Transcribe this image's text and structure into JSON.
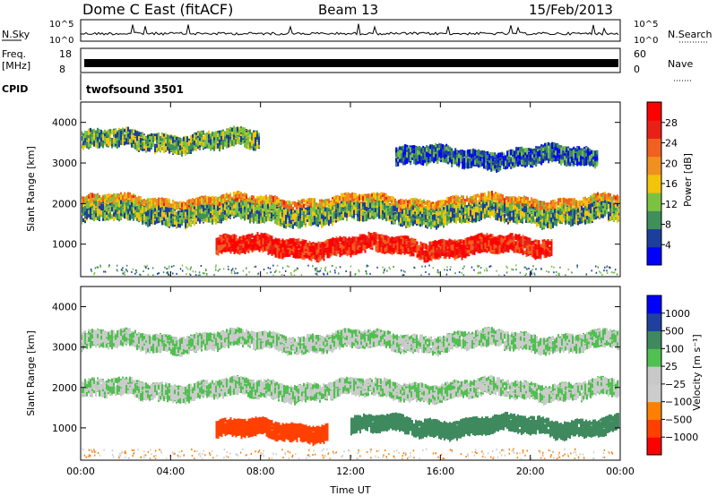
{
  "header": {
    "title": "Dome C East (fitACF)",
    "beam": "Beam 13",
    "date": "15/Feb/2013"
  },
  "nsky": {
    "label": "N.Sky",
    "y_top": "10^5",
    "y_bottom": "10^0",
    "right_label": "N.Search",
    "right_top": "10^5",
    "right_bottom": "10^0"
  },
  "freq": {
    "label_line1": "Freq.",
    "label_line2": "[MHz]",
    "y_top": "18",
    "y_bottom": "8",
    "right_label": "Nave",
    "right_top": "60",
    "right_bottom": "0"
  },
  "cpid": {
    "label": "CPID",
    "value": "twofsound 3501"
  },
  "colors": {
    "power": [
      "#0000ff",
      "#1c3f9c",
      "#3e8f5a",
      "#7cc242",
      "#f2c40a",
      "#f09020",
      "#f06020",
      "#e82018",
      "#ff0000"
    ],
    "velocity": [
      "#ff0000",
      "#ff4000",
      "#ff8000",
      "#cccccc",
      "#c8c8c8",
      "#50c050",
      "#3e8a5e",
      "#2040a0",
      "#0000ff"
    ]
  },
  "chart_data": [
    {
      "type": "heatmap",
      "title": "Power",
      "ylabel": "Slant Range [km]",
      "ylim": [
        200,
        4500
      ],
      "yticks": [
        "1000",
        "2000",
        "3000",
        "4000"
      ],
      "xlim": [
        "00:00",
        "24:00"
      ],
      "colorbar": {
        "label": "Power [dB]",
        "ticks": [
          "4",
          "8",
          "12",
          "16",
          "20",
          "24",
          "28"
        ],
        "range": [
          0,
          30
        ]
      },
      "bands": [
        {
          "x_start_h": 0,
          "x_end_h": 24,
          "range_km": 2000,
          "value_db": 18
        },
        {
          "x_start_h": 0,
          "x_end_h": 24,
          "range_km": 1800,
          "value_db": 10
        },
        {
          "x_start_h": 6,
          "x_end_h": 21,
          "range_km": 1000,
          "value_db": 26
        },
        {
          "x_start_h": 0,
          "x_end_h": 8,
          "range_km": 3600,
          "value_db": 10
        },
        {
          "x_start_h": 14,
          "x_end_h": 23,
          "range_km": 3200,
          "value_db": 6
        }
      ]
    },
    {
      "type": "heatmap",
      "title": "Velocity",
      "ylabel": "Slant Range [km]",
      "xlabel": "Time UT",
      "ylim": [
        200,
        4500
      ],
      "yticks": [
        "1000",
        "2000",
        "3000",
        "4000"
      ],
      "xticks": [
        "00:00",
        "04:00",
        "08:00",
        "12:00",
        "16:00",
        "20:00",
        "00:00"
      ],
      "colorbar": {
        "label": "Velocity [m s⁻¹]",
        "ticks": [
          "1000",
          "500",
          "100",
          "25",
          "−25",
          "−100",
          "−500",
          "−1000"
        ]
      },
      "bands": [
        {
          "x_start_h": 0,
          "x_end_h": 24,
          "range_km": 2000,
          "value_ms": 0
        },
        {
          "x_start_h": 6,
          "x_end_h": 11,
          "range_km": 1000,
          "value_ms": -300
        },
        {
          "x_start_h": 12,
          "x_end_h": 24,
          "range_km": 1100,
          "value_ms": 300
        },
        {
          "x_start_h": 0,
          "x_end_h": 24,
          "range_km": 3200,
          "value_ms": 0
        }
      ]
    }
  ]
}
